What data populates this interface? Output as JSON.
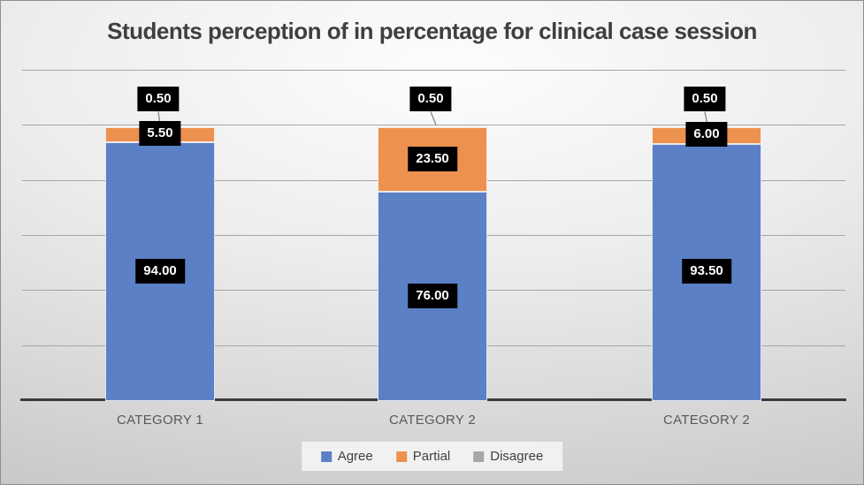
{
  "chart_data": {
    "type": "bar",
    "subtype": "stacked-column",
    "title": "Students perception of in percentage for clinical case session",
    "categories": [
      "CATEGORY 1",
      "CATEGORY 2",
      "CATEGORY 2"
    ],
    "series": [
      {
        "name": "Agree",
        "color": "#5b80c6",
        "values": [
          94.0,
          76.0,
          93.5
        ]
      },
      {
        "name": "Partial",
        "color": "#ed914f",
        "values": [
          5.5,
          23.5,
          6.0
        ]
      },
      {
        "name": "Disagree",
        "color": "#c2c2c2",
        "values": [
          0.5,
          0.5,
          0.5
        ]
      }
    ],
    "data_label_format": "0.00",
    "data_label_style": {
      "background": "#000000",
      "text": "#ffffff"
    },
    "ylim": [
      0,
      120
    ],
    "gridline_step": 20,
    "grid": true,
    "y_axis_labels_visible": false,
    "legend_position": "bottom",
    "colors": {
      "gridline": "#a6a6a6",
      "axis": "#3b3b3b",
      "title": "#3f3f3f",
      "category_label": "#595959",
      "legend_background": "#f1f1f1",
      "legend_swatch_disagree": "#a6a6a6",
      "leader_line": "#8c8c8c"
    }
  }
}
